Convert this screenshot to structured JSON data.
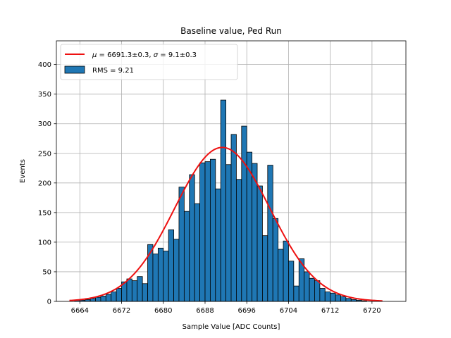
{
  "chart_data": {
    "type": "bar",
    "title": "Baseline value, Ped Run",
    "xlabel": "Sample Value [ADC Counts]",
    "ylabel": "Events",
    "xlim": [
      6659.5,
      6726.5
    ],
    "ylim": [
      0,
      440
    ],
    "xticks": [
      6664,
      6672,
      6680,
      6688,
      6696,
      6704,
      6712,
      6720
    ],
    "yticks": [
      0,
      50,
      100,
      150,
      200,
      250,
      300,
      350,
      400
    ],
    "grid": true,
    "legend_position": "top-left",
    "bin_width": 1,
    "bins": [
      6663,
      6664,
      6665,
      6666,
      6667,
      6668,
      6669,
      6670,
      6671,
      6672,
      6673,
      6674,
      6675,
      6676,
      6677,
      6678,
      6679,
      6680,
      6681,
      6682,
      6683,
      6684,
      6685,
      6686,
      6687,
      6688,
      6689,
      6690,
      6691,
      6692,
      6693,
      6694,
      6695,
      6696,
      6697,
      6698,
      6699,
      6700,
      6701,
      6702,
      6703,
      6704,
      6705,
      6706,
      6707,
      6708,
      6709,
      6710,
      6711,
      6712,
      6713,
      6714,
      6715,
      6716,
      6717,
      6718
    ],
    "series": [
      {
        "name": "RMS = 9.21",
        "kind": "histogram",
        "color": "#1f77b4",
        "edgecolor": "#000000",
        "values": [
          2,
          2,
          3,
          5,
          7,
          9,
          12,
          16,
          22,
          33,
          38,
          35,
          42,
          30,
          96,
          80,
          90,
          85,
          121,
          105,
          193,
          152,
          214,
          165,
          234,
          236,
          240,
          190,
          340,
          231,
          282,
          206,
          296,
          252,
          233,
          195,
          111,
          230,
          140,
          88,
          102,
          68,
          26,
          72,
          50,
          39,
          35,
          22,
          16,
          14,
          11,
          8,
          5,
          3,
          2,
          1
        ]
      },
      {
        "name": "$\\mu = 6691.3 \\pm 0.3$, $\\sigma = 9.1 \\pm 0.3$",
        "label_parts": [
          "μ",
          " = 6691.3±0.3, ",
          "σ",
          " = 9.1±0.3"
        ],
        "kind": "gaussian-fit",
        "color": "#ee1111",
        "mu": 6691.3,
        "sigma": 9.1,
        "amplitude": 260,
        "x_range": [
          6662,
          6722
        ]
      }
    ]
  }
}
